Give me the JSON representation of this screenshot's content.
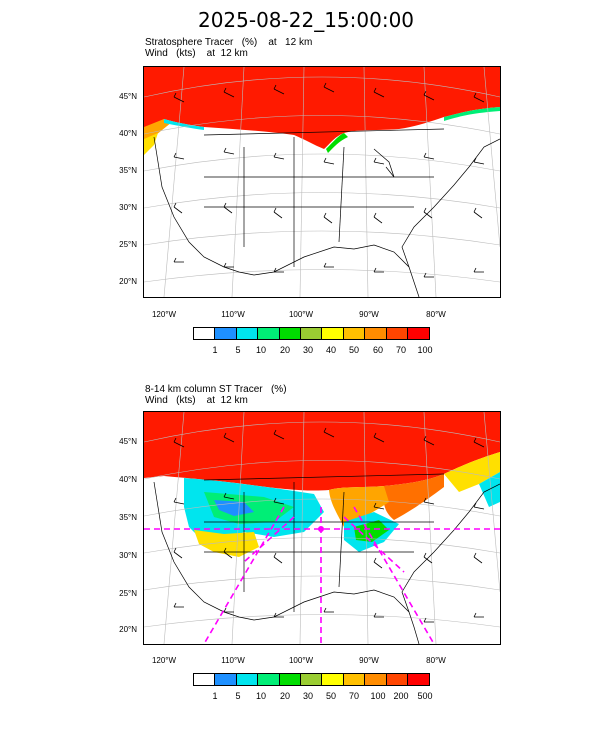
{
  "header": {
    "title": "2025-08-22_15:00:00"
  },
  "panels": [
    {
      "label_line1": "Stratosphere Tracer   (%)    at   12 km",
      "label_line2": "Wind   (kts)    at  12 km",
      "lat_labels": [
        "45°N",
        "40°N",
        "35°N",
        "30°N",
        "25°N",
        "20°N"
      ],
      "lon_labels": [
        "120°W",
        "110°W",
        "100°W",
        "90°W",
        "80°W"
      ],
      "colorbar_labels": [
        "1",
        "5",
        "10",
        "20",
        "30",
        "40",
        "50",
        "60",
        "70",
        "100"
      ]
    },
    {
      "label_line1": "8-14 km column ST Tracer   (%)",
      "label_line2": "Wind   (kts)    at  12 km",
      "lat_labels": [
        "45°N",
        "40°N",
        "35°N",
        "30°N",
        "25°N",
        "20°N"
      ],
      "lon_labels": [
        "120°W",
        "110°W",
        "100°W",
        "90°W",
        "80°W"
      ],
      "colorbar_labels": [
        "1",
        "5",
        "10",
        "20",
        "30",
        "50",
        "70",
        "100",
        "200",
        "500"
      ]
    }
  ],
  "colorbar_colors": [
    "#ffffff",
    "#1e90ff",
    "#00e5ee",
    "#00ee76",
    "#00dd00",
    "#9acd32",
    "#ffff00",
    "#ffc000",
    "#ff8c00",
    "#ff4500",
    "#ff0000"
  ],
  "overlay_color": "#ff00ff"
}
